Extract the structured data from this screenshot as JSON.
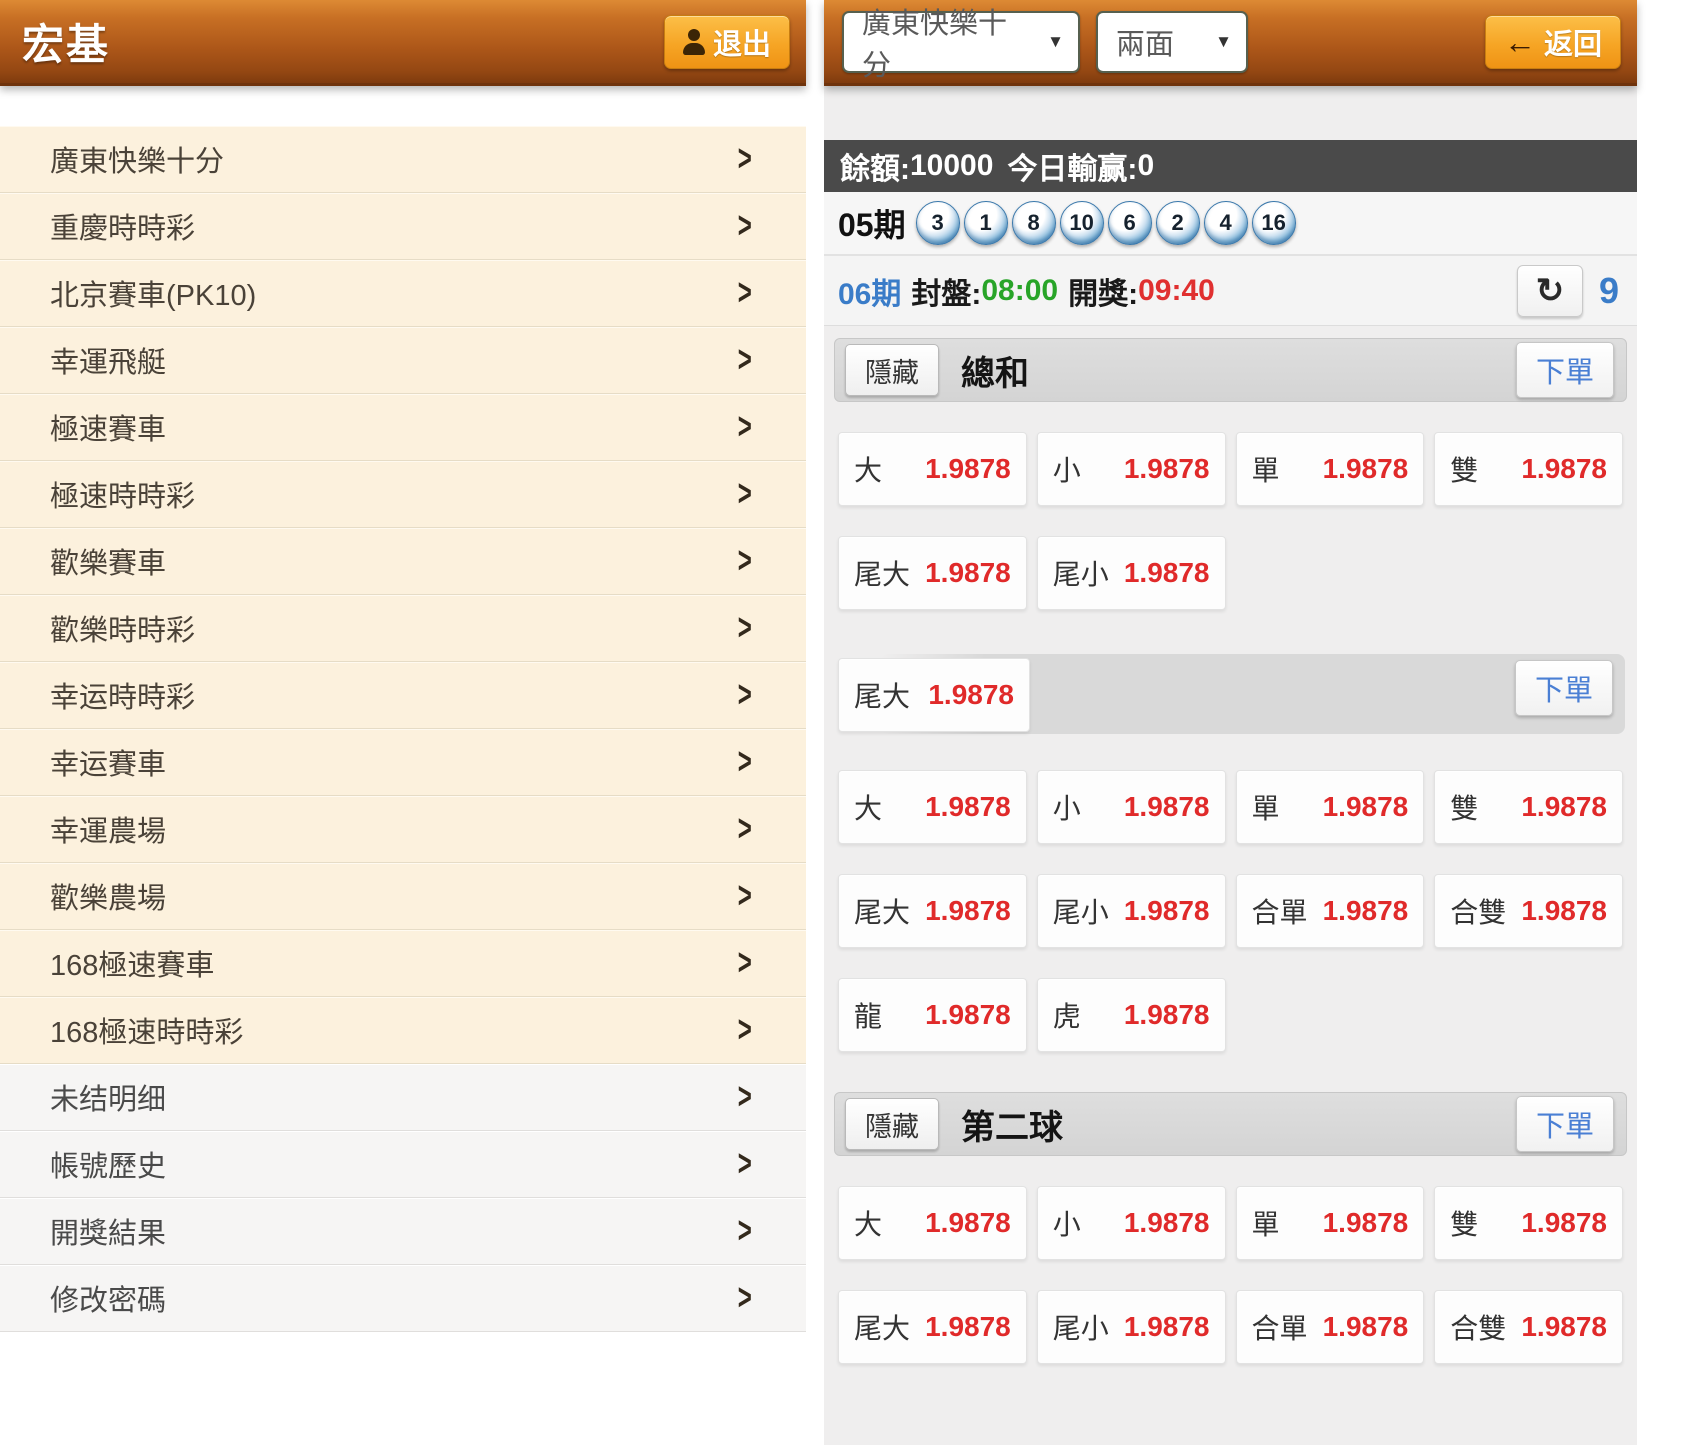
{
  "colors": {
    "header_gradient_top": "#dd8a34",
    "header_gradient_bottom": "#7f3b0e",
    "action_button_orange": "#f6a525",
    "sidebar_item_cream": "#fcf1dd",
    "balance_bar_grey": "#4a4a4a",
    "odds_red": "#e02a2a",
    "bet_link_blue": "#4a7fd4",
    "period_blue": "#3a7cc8",
    "close_time_green": "#28a428",
    "open_time_red": "#e03030",
    "ball_blue": "#4e92c6"
  },
  "icons": {
    "logout_user_icon": "user-silhouette",
    "back_arrow_glyph": "←",
    "refresh_glyph": "↻",
    "caret_glyph": "▼",
    "chevron_glyph": ">"
  },
  "sidebar": {
    "brand": "宏基",
    "logout_label": "退出",
    "games": [
      "廣東快樂十分",
      "重慶時時彩",
      "北京賽車(PK10)",
      "幸運飛艇",
      "極速賽車",
      "極速時時彩",
      "歡樂賽車",
      "歡樂時時彩",
      "幸运時時彩",
      "幸运賽車",
      "幸運農場",
      "歡樂農場",
      "168極速賽車",
      "168極速時時彩"
    ],
    "account_items": [
      "未结明细",
      "帳號歷史",
      "開獎結果",
      "修改密碼"
    ]
  },
  "topbar": {
    "game_select_value": "廣東快樂十分",
    "mode_select_value": "兩面",
    "back_label": "返回"
  },
  "balance_bar": {
    "balance_label": "餘額:",
    "balance_value": "10000",
    "winloss_label": "今日輸赢:",
    "winloss_value": "0"
  },
  "last_draw": {
    "period": "05期",
    "numbers": [
      "3",
      "1",
      "8",
      "10",
      "6",
      "2",
      "4",
      "16"
    ]
  },
  "next_draw": {
    "period": "06期",
    "close_label": "封盤:",
    "close_time": "08:00",
    "open_label": "開獎:",
    "open_time": "09:40",
    "countdown": "9"
  },
  "board": {
    "hide_label": "隱藏",
    "bet_label": "下單",
    "odds_value": "1.9878",
    "blocks": [
      {
        "kind": "section",
        "title": "總和"
      },
      {
        "kind": "row",
        "cells": [
          {
            "label": "大",
            "odds": "1.9878"
          },
          {
            "label": "小",
            "odds": "1.9878"
          },
          {
            "label": "單",
            "odds": "1.9878"
          },
          {
            "label": "雙",
            "odds": "1.9878"
          }
        ]
      },
      {
        "kind": "row",
        "cells": [
          {
            "label": "尾大",
            "odds": "1.9878"
          },
          {
            "label": "尾小",
            "odds": "1.9878"
          }
        ]
      },
      {
        "kind": "washed_section",
        "cells": [
          {
            "label": "尾大",
            "odds": "1.9878"
          }
        ]
      },
      {
        "kind": "row",
        "cells": [
          {
            "label": "大",
            "odds": "1.9878"
          },
          {
            "label": "小",
            "odds": "1.9878"
          },
          {
            "label": "單",
            "odds": "1.9878"
          },
          {
            "label": "雙",
            "odds": "1.9878"
          }
        ]
      },
      {
        "kind": "row",
        "cells": [
          {
            "label": "尾大",
            "odds": "1.9878"
          },
          {
            "label": "尾小",
            "odds": "1.9878"
          },
          {
            "label": "合單",
            "odds": "1.9878"
          },
          {
            "label": "合雙",
            "odds": "1.9878"
          }
        ]
      },
      {
        "kind": "row",
        "cells": [
          {
            "label": "龍",
            "odds": "1.9878"
          },
          {
            "label": "虎",
            "odds": "1.9878"
          }
        ]
      },
      {
        "kind": "section",
        "title": "第二球"
      },
      {
        "kind": "row",
        "cells": [
          {
            "label": "大",
            "odds": "1.9878"
          },
          {
            "label": "小",
            "odds": "1.9878"
          },
          {
            "label": "單",
            "odds": "1.9878"
          },
          {
            "label": "雙",
            "odds": "1.9878"
          }
        ]
      },
      {
        "kind": "row",
        "cells": [
          {
            "label": "尾大",
            "odds": "1.9878"
          },
          {
            "label": "尾小",
            "odds": "1.9878"
          },
          {
            "label": "合單",
            "odds": "1.9878"
          },
          {
            "label": "合雙",
            "odds": "1.9878"
          }
        ]
      }
    ]
  }
}
